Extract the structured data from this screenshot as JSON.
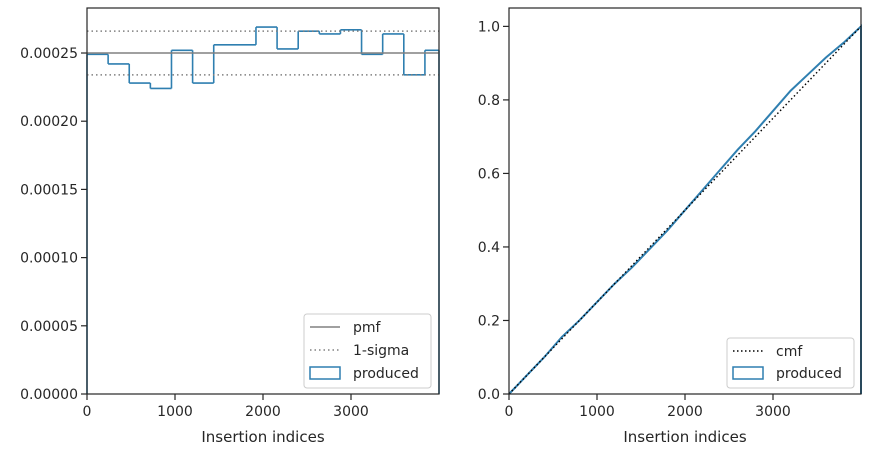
{
  "chart_data": [
    {
      "type": "line",
      "xlabel": "Insertion indices",
      "ylabel": "",
      "xlim": [
        0,
        4000
      ],
      "ylim": [
        0,
        0.000283
      ],
      "xticks": [
        0,
        1000,
        2000,
        3000
      ],
      "xtick_labels": [
        "0",
        "1000",
        "2000",
        "3000"
      ],
      "yticks": [
        0,
        5e-05,
        0.0001,
        0.00015,
        0.0002,
        0.00025
      ],
      "ytick_labels": [
        "0.00000",
        "0.00005",
        "0.00010",
        "0.00015",
        "0.00020",
        "0.00025"
      ],
      "grid": false,
      "legend_position": "lower-right",
      "series": [
        {
          "name": "pmf",
          "style": "solid",
          "color": "#808080",
          "x": [
            0,
            4000
          ],
          "y": [
            0.00025,
            0.00025
          ]
        },
        {
          "name": "1-sigma",
          "style": "dotted",
          "color": "#808080",
          "lines": [
            0.000266,
            0.000234
          ]
        },
        {
          "name": "produced",
          "style": "step",
          "color": "#2f7fb0",
          "bin_edges": [
            0,
            240,
            480,
            720,
            960,
            1200,
            1440,
            1920,
            2160,
            2400,
            2640,
            2880,
            3120,
            3360,
            3600,
            3840,
            4000
          ],
          "values": [
            0.000249,
            0.000242,
            0.000228,
            0.000224,
            0.000252,
            0.000228,
            0.000256,
            0.000269,
            0.000253,
            0.000266,
            0.000264,
            0.000267,
            0.000249,
            0.000264,
            0.000234,
            0.000252
          ]
        }
      ]
    },
    {
      "type": "line",
      "xlabel": "Insertion indices",
      "ylabel": "",
      "xlim": [
        0,
        4000
      ],
      "ylim": [
        0,
        1.05
      ],
      "xticks": [
        0,
        1000,
        2000,
        3000
      ],
      "xtick_labels": [
        "0",
        "1000",
        "2000",
        "3000"
      ],
      "yticks": [
        0,
        0.2,
        0.4,
        0.6,
        0.8,
        1.0
      ],
      "ytick_labels": [
        "0.0",
        "0.2",
        "0.4",
        "0.6",
        "0.8",
        "1.0"
      ],
      "grid": false,
      "legend_position": "lower-right",
      "series": [
        {
          "name": "cmf",
          "style": "dotted",
          "color": "#000000",
          "x": [
            0,
            4000
          ],
          "y": [
            0,
            1.0
          ]
        },
        {
          "name": "produced",
          "style": "step",
          "color": "#2f7fb0",
          "x": [
            0,
            200,
            400,
            600,
            800,
            1000,
            1200,
            1400,
            1600,
            1800,
            2000,
            2200,
            2400,
            2600,
            2800,
            3000,
            3200,
            3400,
            3600,
            3800,
            4000
          ],
          "y": [
            0,
            0.05,
            0.1,
            0.155,
            0.2,
            0.25,
            0.3,
            0.345,
            0.395,
            0.445,
            0.5,
            0.555,
            0.61,
            0.665,
            0.715,
            0.77,
            0.825,
            0.87,
            0.915,
            0.955,
            1.0
          ]
        }
      ]
    }
  ]
}
